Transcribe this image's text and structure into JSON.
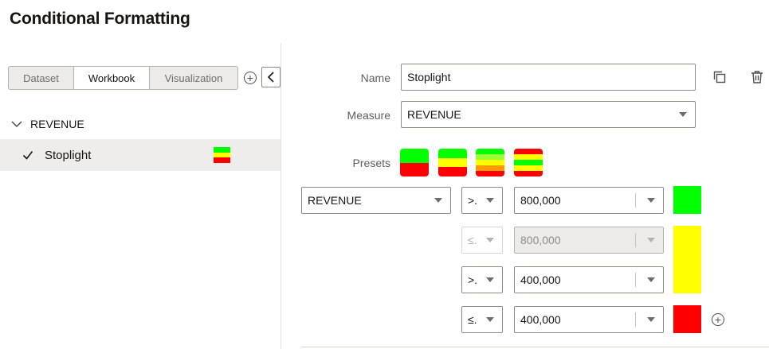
{
  "page": {
    "title": "Conditional Formatting"
  },
  "left": {
    "tabs": [
      {
        "label": "Dataset",
        "selected": false
      },
      {
        "label": "Workbook",
        "selected": true
      },
      {
        "label": "Visualization",
        "selected": false
      }
    ],
    "tree": {
      "group_label": "REVENUE",
      "rule_label": "Stoplight",
      "rule_checked": true,
      "rule_swatch_colors": [
        "#00ff00",
        "#ffff00",
        "#ff0000"
      ]
    }
  },
  "form": {
    "name_label": "Name",
    "name_value": "Stoplight",
    "measure_label": "Measure",
    "measure_value": "REVENUE",
    "presets_label": "Presets",
    "presets": [
      {
        "name": "two-color",
        "colors": [
          "#00ff00",
          "#ff0000"
        ]
      },
      {
        "name": "three-color",
        "colors": [
          "#00ff00",
          "#ffff00",
          "#ff0000"
        ]
      },
      {
        "name": "five-color",
        "colors": [
          "#00ff00",
          "#99ff33",
          "#ffff00",
          "#ff9900",
          "#ff0000"
        ]
      },
      {
        "name": "banded",
        "colors": [
          "#ff0000",
          "#ffff00",
          "#00ff00",
          "#ffff00",
          "#ff0000"
        ]
      }
    ],
    "rule_measure": "REVENUE",
    "conditions": [
      {
        "op": ">.",
        "value": "800,000",
        "disabled": false
      },
      {
        "op": "≤.",
        "value": "800,000",
        "disabled": true
      },
      {
        "op": ">.",
        "value": "400,000",
        "disabled": false
      },
      {
        "op": "≤.",
        "value": "400,000",
        "disabled": false
      }
    ],
    "band_colors": [
      "#00ff00",
      "#ffff00",
      "#ff0000"
    ]
  }
}
